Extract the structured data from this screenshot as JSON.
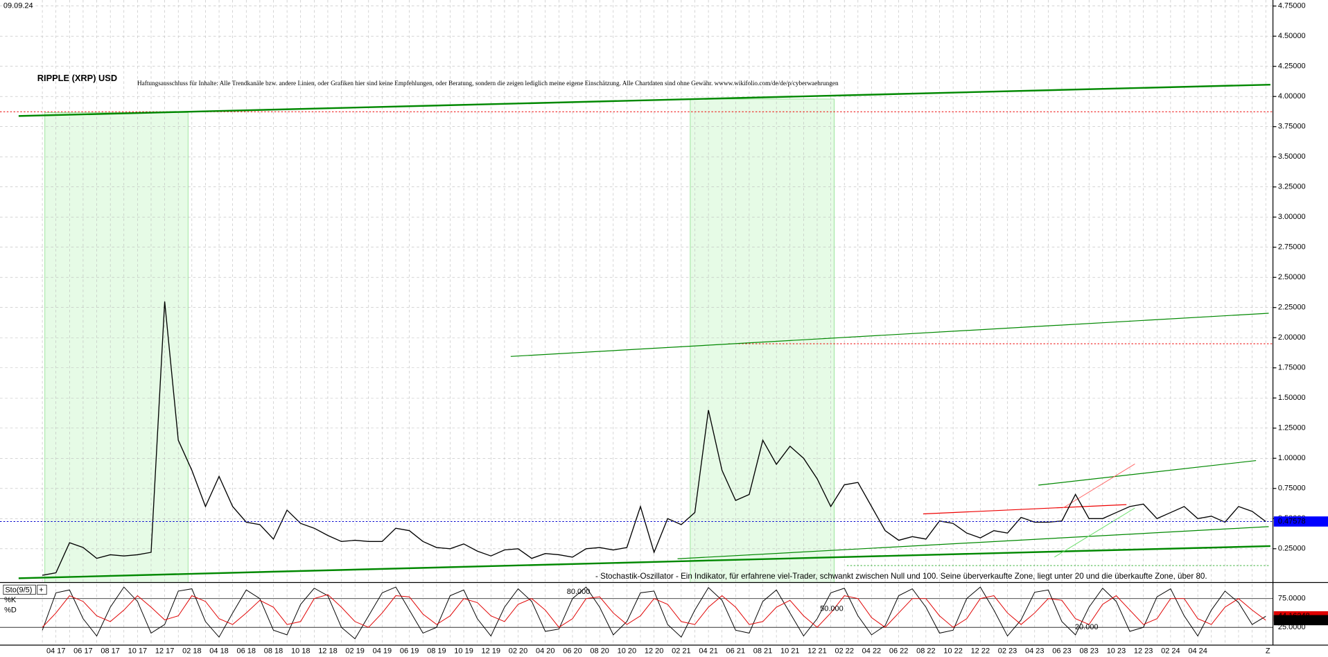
{
  "ui": {
    "date": "09.09.24",
    "z_button": "Z"
  },
  "chart_data": [
    {
      "type": "line",
      "title": "RIPPLE (XRP) USD",
      "subtitle": "Haftungsausschluss für Inhalte: Alle Trendkanäle bzw. andere Linien, oder Grafiken hier sind keine Empfehlungen, oder Beratung, sondern die zeigen lediglich meine eigene Einschätzung. Alle Chartdaten sind ohne Gewähr.  wwww.wikifolio.com/de/de/p/cyberwaehrungen",
      "categories": [
        null,
        "04 17",
        null,
        "06 17",
        null,
        "08 17",
        null,
        "10 17",
        null,
        "12 17",
        null,
        "02 18",
        null,
        "04 18",
        null,
        "06 18",
        null,
        "08 18",
        null,
        "10 18",
        null,
        "12 18",
        null,
        "02 19",
        null,
        "04 19",
        null,
        "06 19",
        null,
        "08 19",
        null,
        "10 19",
        null,
        "12 19",
        null,
        "02 20",
        null,
        "04 20",
        null,
        "06 20",
        null,
        "08 20",
        null,
        "10 20",
        null,
        "12 20",
        null,
        "02 21",
        null,
        "04 21",
        null,
        "06 21",
        null,
        "08 21",
        null,
        "10 21",
        null,
        "12 21",
        null,
        "02 22",
        null,
        "04 22",
        null,
        "06 22",
        null,
        "08 22",
        null,
        "10 22",
        null,
        "12 22",
        null,
        "02 23",
        null,
        "04 23",
        null,
        "06 23",
        null,
        "08 23",
        null,
        "10 23",
        null,
        "12 23",
        null,
        "02 24",
        null,
        "04 24",
        null,
        null,
        null,
        null,
        null
      ],
      "series": [
        {
          "name": "XRP USD",
          "color": "#000000",
          "values": [
            0.03,
            0.05,
            0.3,
            0.26,
            0.17,
            0.2,
            0.19,
            0.2,
            0.22,
            2.3,
            1.15,
            0.9,
            0.6,
            0.85,
            0.6,
            0.47,
            0.45,
            0.33,
            0.57,
            0.46,
            0.42,
            0.36,
            0.31,
            0.32,
            0.31,
            0.31,
            0.42,
            0.4,
            0.31,
            0.26,
            0.25,
            0.29,
            0.23,
            0.19,
            0.24,
            0.25,
            0.17,
            0.21,
            0.2,
            0.18,
            0.25,
            0.26,
            0.24,
            0.26,
            0.6,
            0.22,
            0.5,
            0.45,
            0.55,
            1.4,
            0.9,
            0.65,
            0.7,
            1.15,
            0.95,
            1.1,
            1.0,
            0.83,
            0.6,
            0.78,
            0.8,
            0.6,
            0.4,
            0.32,
            0.35,
            0.33,
            0.48,
            0.46,
            0.38,
            0.34,
            0.4,
            0.38,
            0.51,
            0.47,
            0.47,
            0.48,
            0.7,
            0.5,
            0.5,
            0.55,
            0.6,
            0.62,
            0.5,
            0.55,
            0.6,
            0.5,
            0.52,
            0.47,
            0.6,
            0.56,
            0.47578
          ]
        }
      ],
      "ylim": [
        -0.03,
        4.8
      ],
      "yticks": [
        {
          "value": 0.25,
          "label": "0.25000"
        },
        {
          "value": 0.5,
          "label": "0.50000"
        },
        {
          "value": 0.75,
          "label": "0.75000"
        },
        {
          "value": 1.0,
          "label": "1.00000"
        },
        {
          "value": 1.25,
          "label": "1.25000"
        },
        {
          "value": 1.5,
          "label": "1.50000"
        },
        {
          "value": 1.75,
          "label": "1.75000"
        },
        {
          "value": 2.0,
          "label": "2.00000"
        },
        {
          "value": 2.25,
          "label": "2.25000"
        },
        {
          "value": 2.5,
          "label": "2.50000"
        },
        {
          "value": 2.75,
          "label": "2.75000"
        },
        {
          "value": 3.0,
          "label": "3.00000"
        },
        {
          "value": 3.25,
          "label": "3.25000"
        },
        {
          "value": 3.5,
          "label": "3.50000"
        },
        {
          "value": 3.75,
          "label": "3.75000"
        },
        {
          "value": 4.0,
          "label": "4.00000"
        },
        {
          "value": 4.25,
          "label": "4.25000"
        },
        {
          "value": 4.5,
          "label": "4.50000"
        },
        {
          "value": 4.75,
          "label": "4.75000"
        }
      ],
      "grid": true
    },
    {
      "type": "line",
      "title": "Sto(9/5)",
      "annotation": "- Stochastik-Oszillator - Ein Indikator, für erfahrene viel-Trader, schwankt zwischen Null und 100. Seine überverkaufte Zone, liegt unter 20 und die überkaufte Zone, über 80.",
      "level_labels": [
        "80.000",
        "50.000",
        "20.000"
      ],
      "series": [
        {
          "name": "%K",
          "color": "#000000",
          "values": [
            20,
            85,
            90,
            40,
            10,
            60,
            95,
            70,
            15,
            30,
            88,
            92,
            35,
            8,
            50,
            90,
            75,
            20,
            12,
            65,
            93,
            80,
            25,
            5,
            45,
            85,
            95,
            55,
            15,
            25,
            80,
            90,
            40,
            10,
            60,
            92,
            70,
            18,
            22,
            75,
            95,
            60,
            12,
            35,
            85,
            88,
            30,
            8,
            55,
            94,
            72,
            20,
            15,
            70,
            90,
            50,
            10,
            40,
            85,
            93,
            45,
            12,
            28,
            80,
            92,
            60,
            15,
            20,
            75,
            95,
            55,
            10,
            38,
            86,
            90,
            35,
            12,
            60,
            93,
            70,
            18,
            25,
            78,
            92,
            45,
            10,
            55,
            88,
            68,
            30,
            44.16248
          ]
        },
        {
          "name": "%D",
          "color": "#e00000",
          "values": [
            25,
            50,
            80,
            70,
            45,
            35,
            55,
            80,
            60,
            38,
            45,
            80,
            70,
            40,
            30,
            50,
            72,
            60,
            30,
            35,
            75,
            82,
            60,
            35,
            25,
            50,
            80,
            78,
            48,
            30,
            45,
            75,
            68,
            45,
            35,
            65,
            75,
            55,
            25,
            40,
            75,
            78,
            50,
            30,
            45,
            75,
            65,
            35,
            30,
            60,
            80,
            60,
            30,
            35,
            60,
            72,
            45,
            25,
            50,
            80,
            75,
            42,
            25,
            50,
            75,
            75,
            45,
            25,
            40,
            75,
            80,
            50,
            30,
            50,
            75,
            72,
            40,
            30,
            65,
            80,
            55,
            30,
            40,
            75,
            75,
            40,
            30,
            60,
            75,
            55,
            37.48032
          ]
        }
      ],
      "ylim": [
        -3,
        100
      ],
      "yticks": [
        {
          "value": 75,
          "label": "75.0000"
        },
        {
          "value": 25,
          "label": "25.0000"
        }
      ]
    }
  ]
}
